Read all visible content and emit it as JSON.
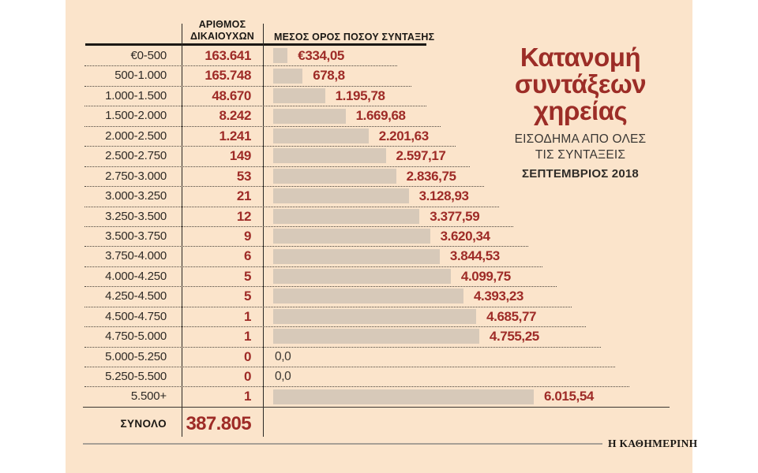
{
  "colors": {
    "background": "#fbe4cb",
    "page": "#ffffff",
    "bar": "#d7c9b9",
    "accent_red": "#9e2b27",
    "text_dark": "#2e2a26",
    "rule_gray": "#a79f96"
  },
  "title": {
    "lines": [
      "Κατανομή",
      "συντάξεων",
      "χηρείας"
    ],
    "subtitle_lines": [
      "ΕΙΣΟΔΗΜΑ ΑΠΟ ΟΛΕΣ",
      "ΤΙΣ ΣΥΝΤΑΞΕΙΣ"
    ],
    "date": "ΣΕΠΤΕΜΒΡΙΟΣ 2018"
  },
  "table": {
    "col1_header_lines": [
      "ΑΡΙΘΜΟΣ",
      "ΔΙΚΑΙΟΥΧΩΝ"
    ],
    "col2_header": "ΜΕΣΟΣ ΟΡΟΣ ΠΟΣΟΥ ΣΥΝΤΑΞΗΣ",
    "rows": [
      {
        "range": "€0-500",
        "count": "163.641",
        "value": 334.05,
        "value_label": "€334,05"
      },
      {
        "range": "500-1.000",
        "count": "165.748",
        "value": 678.8,
        "value_label": "678,8"
      },
      {
        "range": "1.000-1.500",
        "count": "48.670",
        "value": 1195.78,
        "value_label": "1.195,78"
      },
      {
        "range": "1.500-2.000",
        "count": "8.242",
        "value": 1669.68,
        "value_label": "1.669,68"
      },
      {
        "range": "2.000-2.500",
        "count": "1.241",
        "value": 2201.63,
        "value_label": "2.201,63"
      },
      {
        "range": "2.500-2.750",
        "count": "149",
        "value": 2597.17,
        "value_label": "2.597,17"
      },
      {
        "range": "2.750-3.000",
        "count": "53",
        "value": 2836.75,
        "value_label": "2.836,75"
      },
      {
        "range": "3.000-3.250",
        "count": "21",
        "value": 3128.93,
        "value_label": "3.128,93"
      },
      {
        "range": "3.250-3.500",
        "count": "12",
        "value": 3377.59,
        "value_label": "3.377,59"
      },
      {
        "range": "3.500-3.750",
        "count": "9",
        "value": 3620.34,
        "value_label": "3.620,34"
      },
      {
        "range": "3.750-4.000",
        "count": "6",
        "value": 3844.53,
        "value_label": "3.844,53"
      },
      {
        "range": "4.000-4.250",
        "count": "5",
        "value": 4099.75,
        "value_label": "4.099,75"
      },
      {
        "range": "4.250-4.500",
        "count": "5",
        "value": 4393.23,
        "value_label": "4.393,23"
      },
      {
        "range": "4.500-4.750",
        "count": "1",
        "value": 4685.77,
        "value_label": "4.685,77"
      },
      {
        "range": "4.750-5.000",
        "count": "1",
        "value": 4755.25,
        "value_label": "4.755,25"
      },
      {
        "range": "5.000-5.250",
        "count": "0",
        "value": 0,
        "value_label": "0,0",
        "zero": true
      },
      {
        "range": "5.250-5.500",
        "count": "0",
        "value": 0,
        "value_label": "0,0",
        "zero": true
      },
      {
        "range": "5.500+",
        "count": "1",
        "value": 6015.54,
        "value_label": "6.015,54"
      }
    ],
    "total_label": "ΣΥΝΟΛΟ",
    "total_value": "387.805"
  },
  "footer": {
    "brand": "Η ΚΑΘΗΜΕΡΙΝΗ"
  },
  "chart_data": {
    "type": "bar",
    "orientation": "horizontal",
    "title": "Κατανομή συντάξεων χηρείας",
    "subtitle": "ΕΙΣΟΔΗΜΑ ΑΠΟ ΟΛΕΣ ΤΙΣ ΣΥΝΤΑΞΕΙΣ",
    "period": "ΣΕΠΤΕΜΒΡΙΟΣ 2018",
    "categories": [
      "€0-500",
      "500-1.000",
      "1.000-1.500",
      "1.500-2.000",
      "2.000-2.500",
      "2.500-2.750",
      "2.750-3.000",
      "3.000-3.250",
      "3.250-3.500",
      "3.500-3.750",
      "3.750-4.000",
      "4.000-4.250",
      "4.250-4.500",
      "4.500-4.750",
      "4.750-5.000",
      "5.000-5.250",
      "5.250-5.500",
      "5.500+"
    ],
    "series": [
      {
        "name": "ΑΡΙΘΜΟΣ ΔΙΚΑΙΟΥΧΩΝ",
        "values": [
          163641,
          165748,
          48670,
          8242,
          1241,
          149,
          53,
          21,
          12,
          9,
          6,
          5,
          5,
          1,
          1,
          0,
          0,
          1
        ]
      },
      {
        "name": "ΜΕΣΟΣ ΟΡΟΣ ΠΟΣΟΥ ΣΥΝΤΑΞΗΣ",
        "values": [
          334.05,
          678.8,
          1195.78,
          1669.68,
          2201.63,
          2597.17,
          2836.75,
          3128.93,
          3377.59,
          3620.34,
          3844.53,
          4099.75,
          4393.23,
          4685.77,
          4755.25,
          0.0,
          0.0,
          6015.54
        ]
      }
    ],
    "bars_plotted_series": "ΜΕΣΟΣ ΟΡΟΣ ΠΟΣΟΥ ΣΥΝΤΑΞΗΣ",
    "xlim": [
      0,
      6015.54
    ],
    "grid": false,
    "total": {
      "label": "ΣΥΝΟΛΟ",
      "value": 387805
    },
    "source": "Η ΚΑΘΗΜΕΡΙΝΗ"
  }
}
